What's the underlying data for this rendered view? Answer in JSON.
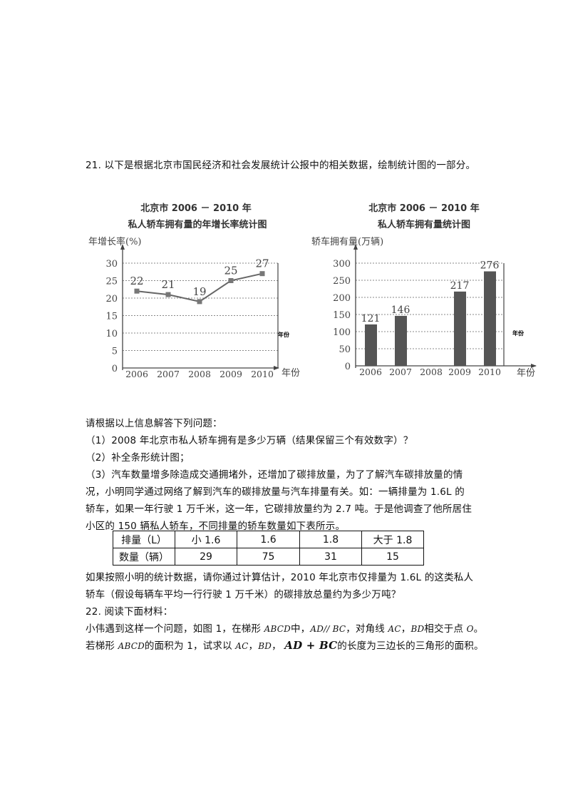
{
  "question21": "21. 以下是根据北京市国民经济和社会发展统计公报中的相关数据，绘制统计图的一部分。",
  "chart_data": [
    {
      "type": "line",
      "title_line1": "北京市 2006 － 2010 年",
      "title_line2": "私人轿车拥有量的年增长率统计图",
      "ylabel": "年增长率(%)",
      "xlabel": "年份",
      "stray_label": "年份",
      "categories": [
        "2006",
        "2007",
        "2008",
        "2009",
        "2010"
      ],
      "values": [
        22,
        21,
        19,
        25,
        27
      ],
      "ylim": [
        0,
        30
      ],
      "yticks": [
        0,
        5,
        10,
        15,
        20,
        25,
        30
      ],
      "grid": true
    },
    {
      "type": "bar",
      "title_line1": "北京市 2006 － 2010 年",
      "title_line2": "私人轿车拥有量统计图",
      "ylabel": "轿车拥有量(万辆)",
      "xlabel": "年份",
      "stray_label": "年份",
      "categories": [
        "2006",
        "2007",
        "2008",
        "2009",
        "2010"
      ],
      "values": [
        121,
        146,
        null,
        217,
        276
      ],
      "ylim": [
        0,
        300
      ],
      "yticks": [
        0,
        50,
        100,
        150,
        200,
        250,
        300
      ],
      "grid": true,
      "bar_color": "#555555"
    }
  ],
  "body": {
    "intro": "请根据以上信息解答下列问题：",
    "q1": "（1）2008 年北京市私人轿车拥有是多少万辆（结果保留三个有效数字）？",
    "q2": "（2）补全条形统计图；",
    "q3_1": "（3）汽车数量增多除造成交通拥堵外，还增加了碳排放量，为了了解汽车碳排放量的情",
    "q3_2": "况，小明同学通过网络了解到汽车的碳排放量与汽车排量有关。如：一辆排量为 1.6L 的",
    "q3_3": "轿车，如果一年行驶 1 万千米，这一年，它碳排放量约为 2.7 吨。于是他调查了他所居住",
    "q3_4": "小区的 150 辆私人轿车，不同排量的轿车数量如下表所示。",
    "after_1": "如果按照小明的统计数据，请你通过计算估计，2010 年北京市仅排量为 1.6L 的这类私人",
    "after_2": "轿车（假设每辆车平均一行行驶 1 万千米）的碳排放总量约为多少万吨？"
  },
  "table": {
    "header": [
      "排量（L）",
      "小 1.6",
      "1.6",
      "1.8",
      "大于 1.8"
    ],
    "row": [
      "数量（辆）",
      "29",
      "75",
      "31",
      "15"
    ]
  },
  "question22": {
    "title": "22. 阅读下面材料：",
    "l1_a": "小伟遇到这样一个问题，如图 1，在梯形 ",
    "l1_abcd": "ABCD",
    "l1_b": "中，",
    "l1_par": "AD// BC",
    "l1_c": "，对角线 ",
    "l1_ac": "AC",
    "l1_d": "，",
    "l1_bd": "BD",
    "l1_e": "相交于点 ",
    "l1_o": "O",
    "l1_f": "。",
    "l2_a": "若梯形 ",
    "l2_abcd": "ABCD",
    "l2_b": "的面积为 1，试求以 ",
    "l2_ac": "AC",
    "l2_c": "，",
    "l2_bd": "BD",
    "l2_d": "， ",
    "l2_sum": "AD + BC",
    "l2_e": "的长度为三边长的三角形的面积。"
  }
}
